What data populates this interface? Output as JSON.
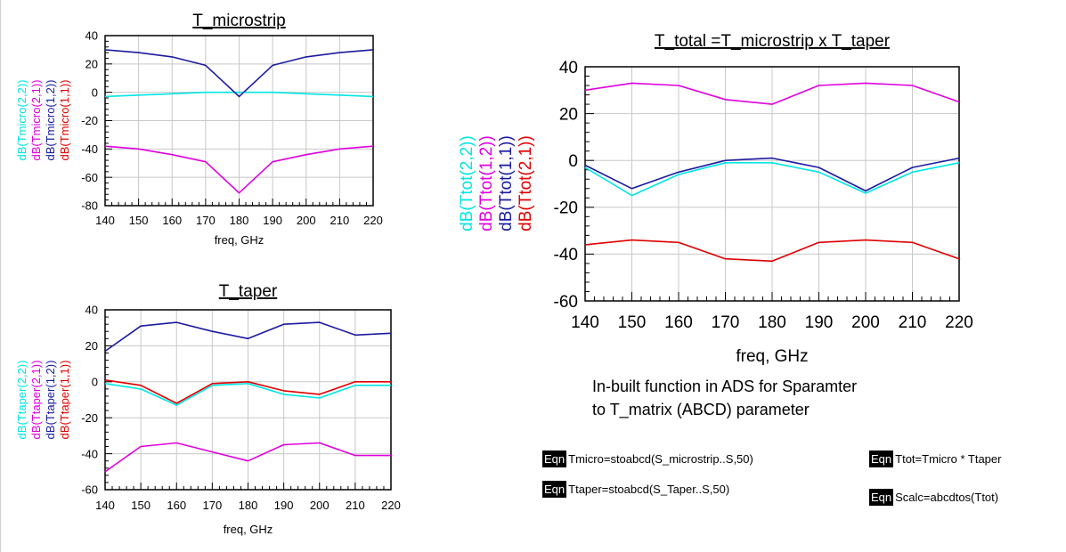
{
  "chart_data": [
    {
      "id": "micro",
      "type": "line",
      "title": "T_microstrip",
      "xlabel": "freq, GHz",
      "x": [
        140,
        150,
        160,
        170,
        180,
        190,
        200,
        210,
        220
      ],
      "xlim": [
        140,
        220
      ],
      "ylim": [
        -80,
        40
      ],
      "yticks": [
        -80,
        -60,
        -40,
        -20,
        0,
        20,
        40
      ],
      "grid": true,
      "series": [
        {
          "name": "dB(Tmicro(2,2))",
          "color": "#00e5e5",
          "values": [
            -3,
            -2,
            -1,
            0,
            0,
            0,
            -1,
            -2,
            -3
          ]
        },
        {
          "name": "dB(Tmicro(2,1))",
          "color": "#e000e0",
          "values": [
            -38,
            -40,
            -44,
            -49,
            -71,
            -49,
            -44,
            -40,
            -38
          ]
        },
        {
          "name": "dB(Tmicro(1,2))",
          "color": "#1a1aa0",
          "values": [
            30,
            28,
            25,
            19,
            -3,
            19,
            25,
            28,
            30
          ]
        },
        {
          "name": "dB(Tmicro(1,1))",
          "color": "#e00000",
          "values": [
            null,
            null,
            null,
            null,
            null,
            null,
            null,
            null,
            null
          ]
        }
      ]
    },
    {
      "id": "taper",
      "type": "line",
      "title": "T_taper",
      "xlabel": "freq, GHz",
      "x": [
        140,
        150,
        160,
        170,
        180,
        190,
        200,
        210,
        220
      ],
      "xlim": [
        140,
        220
      ],
      "ylim": [
        -60,
        40
      ],
      "yticks": [
        -60,
        -40,
        -20,
        0,
        20,
        40
      ],
      "grid": true,
      "series": [
        {
          "name": "dB(Ttaper(2,2))",
          "color": "#00e5e5",
          "values": [
            -1,
            -4,
            -13,
            -2,
            -1,
            -7,
            -9,
            -2,
            -2
          ]
        },
        {
          "name": "dB(Ttaper(2,1))",
          "color": "#e000e0",
          "values": [
            -50,
            -36,
            -34,
            -39,
            -44,
            -35,
            -34,
            -41,
            -41
          ]
        },
        {
          "name": "dB(Ttaper(1,2))",
          "color": "#1a1aa0",
          "values": [
            17,
            31,
            33,
            28,
            24,
            32,
            33,
            26,
            27
          ]
        },
        {
          "name": "dB(Ttaper(1,1))",
          "color": "#e00000",
          "values": [
            1,
            -2,
            -12,
            -1,
            0,
            -5,
            -7,
            0,
            0
          ]
        }
      ]
    },
    {
      "id": "tot",
      "type": "line",
      "title": "T_total =T_microstrip x T_taper",
      "xlabel": "freq, GHz",
      "x": [
        140,
        150,
        160,
        170,
        180,
        190,
        200,
        210,
        220
      ],
      "xlim": [
        140,
        220
      ],
      "ylim": [
        -60,
        40
      ],
      "yticks": [
        -60,
        -40,
        -20,
        0,
        20,
        40
      ],
      "grid": true,
      "series": [
        {
          "name": "dB(Ttot(2,2))",
          "color": "#00e5e5",
          "values": [
            -3,
            -15,
            -6,
            -1,
            -1,
            -5,
            -14,
            -5,
            -1
          ]
        },
        {
          "name": "dB(Ttot(1,2))",
          "color": "#e000e0",
          "values": [
            30,
            33,
            32,
            26,
            24,
            32,
            33,
            32,
            25
          ]
        },
        {
          "name": "dB(Ttot(1,1))",
          "color": "#1a1aa0",
          "values": [
            -2,
            -12,
            -5,
            0,
            1,
            -3,
            -13,
            -3,
            1
          ]
        },
        {
          "name": "dB(Ttot(2,1))",
          "color": "#e00000",
          "values": [
            -36,
            -34,
            -35,
            -42,
            -43,
            -35,
            -34,
            -35,
            -42
          ]
        }
      ]
    }
  ],
  "note": {
    "line1": "In-built function in ADS for Sparamter",
    "line2": "to T_matrix (ABCD) parameter"
  },
  "equations": {
    "tag": "Eqn",
    "tmicro": "Tmicro=stoabcd(S_microstrip..S,50)",
    "ttaper": "Ttaper=stoabcd(S_Taper..S,50)",
    "ttot": "Ttot=Tmicro * Ttaper",
    "scalc": "Scalc=abcdtos(Ttot)"
  }
}
